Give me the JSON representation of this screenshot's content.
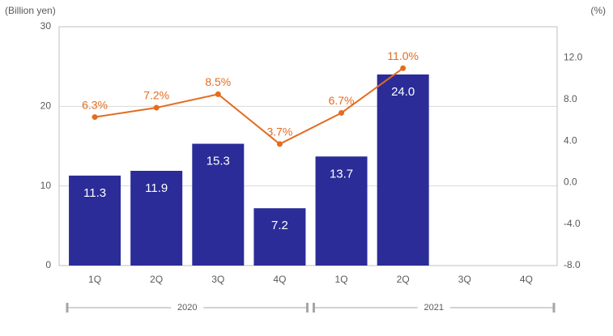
{
  "chart_data": {
    "type": "bar_line",
    "y_label": "(Billion yen)",
    "y2_label": "(%)",
    "categories": [
      "1Q",
      "2Q",
      "3Q",
      "4Q",
      "1Q",
      "2Q",
      "3Q",
      "4Q"
    ],
    "groups": [
      "2020",
      "2021"
    ],
    "series": [
      {
        "type": "bar",
        "color": "#2b2c98",
        "values": [
          11.3,
          11.9,
          15.3,
          7.2,
          13.7,
          24.0,
          null,
          null
        ],
        "value_labels": [
          "11.3",
          "11.9",
          "15.3",
          "7.2",
          "13.7",
          "24.0",
          null,
          null
        ]
      },
      {
        "type": "line",
        "axis": "y2",
        "color": "#e36c1f",
        "values": [
          6.3,
          7.2,
          8.5,
          3.7,
          6.7,
          11.0,
          null,
          null
        ],
        "value_labels": [
          "6.3%",
          "7.2%",
          "8.5%",
          "3.7%",
          "6.7%",
          "11.0%",
          null,
          null
        ]
      }
    ],
    "ylim": [
      0,
      30
    ],
    "yticks": [
      0,
      10,
      20,
      30
    ],
    "y2lim": [
      -8,
      15
    ],
    "y2ticks": [
      {
        "value": -8,
        "label": "-8.0"
      },
      {
        "value": -4,
        "label": "-4.0"
      },
      {
        "value": 0,
        "label": "0.0"
      },
      {
        "value": 4,
        "label": "4.0"
      },
      {
        "value": 8,
        "label": "8.0"
      },
      {
        "value": 12,
        "label": "12.0"
      }
    ],
    "grid": true
  }
}
